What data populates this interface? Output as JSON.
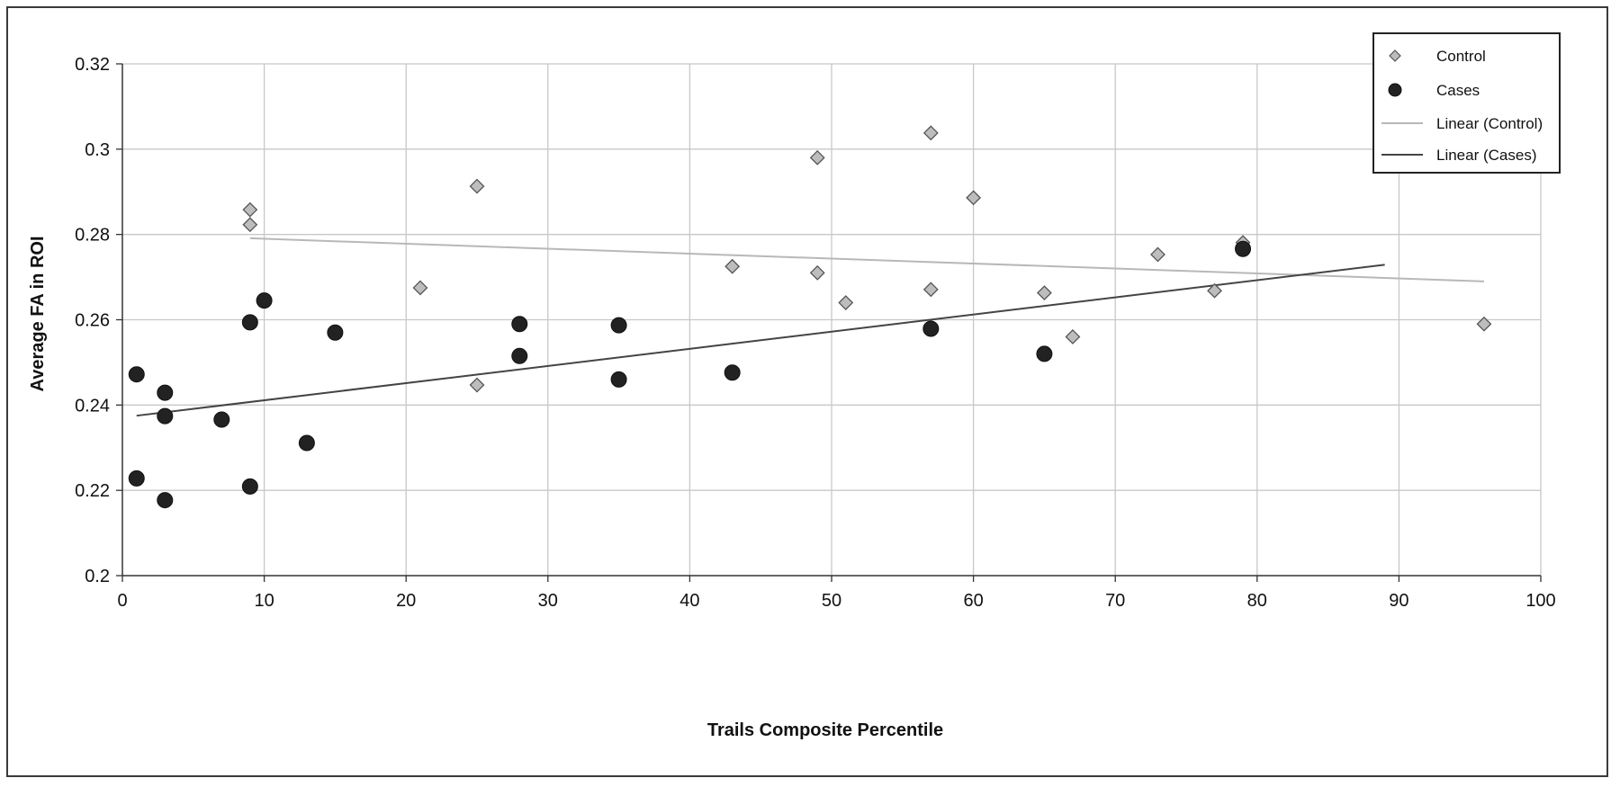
{
  "chart_data": {
    "type": "scatter",
    "title": "",
    "xlabel": "Trails Composite Percentile",
    "ylabel": "Average FA in ROI",
    "xlim": [
      0,
      100
    ],
    "ylim": [
      0.2,
      0.32
    ],
    "x_ticks": [
      0,
      10,
      20,
      30,
      40,
      50,
      60,
      70,
      80,
      90,
      100
    ],
    "y_ticks": [
      0.2,
      0.22,
      0.24,
      0.26,
      0.28,
      0.3,
      0.32
    ],
    "x_tick_labels": [
      "0",
      "10",
      "20",
      "30",
      "40",
      "50",
      "60",
      "70",
      "80",
      "90",
      "100"
    ],
    "y_tick_labels": [
      "0.2",
      "0.22",
      "0.24",
      "0.26",
      "0.28",
      "0.3",
      "0.32"
    ],
    "grid": true,
    "legend_position": "top-right",
    "series": [
      {
        "name": "Control",
        "marker": "diamond",
        "color": "#bdbdbd",
        "points": [
          [
            9,
            0.2858
          ],
          [
            9,
            0.2823
          ],
          [
            21,
            0.2675
          ],
          [
            25,
            0.2913
          ],
          [
            25,
            0.2447
          ],
          [
            43,
            0.2725
          ],
          [
            49,
            0.298
          ],
          [
            49,
            0.271
          ],
          [
            51,
            0.264
          ],
          [
            57,
            0.3038
          ],
          [
            57,
            0.2671
          ],
          [
            60,
            0.2886
          ],
          [
            65,
            0.2663
          ],
          [
            67,
            0.256
          ],
          [
            73,
            0.2753
          ],
          [
            77,
            0.2668
          ],
          [
            79,
            0.2781
          ],
          [
            96,
            0.259
          ]
        ]
      },
      {
        "name": "Cases",
        "marker": "circle",
        "color": "#222222",
        "points": [
          [
            1,
            0.2472
          ],
          [
            1,
            0.2228
          ],
          [
            3,
            0.2429
          ],
          [
            3,
            0.2374
          ],
          [
            3,
            0.2177
          ],
          [
            7,
            0.2366
          ],
          [
            9,
            0.2594
          ],
          [
            9,
            0.2209
          ],
          [
            10,
            0.2645
          ],
          [
            13,
            0.2311
          ],
          [
            15,
            0.257
          ],
          [
            28,
            0.259
          ],
          [
            28,
            0.2515
          ],
          [
            35,
            0.2587
          ],
          [
            35,
            0.246
          ],
          [
            43,
            0.2476
          ],
          [
            57,
            0.2579
          ],
          [
            65,
            0.252
          ],
          [
            79,
            0.2766
          ]
        ]
      },
      {
        "name": "Linear (Control)",
        "marker": "line",
        "color": "#b8b8b8",
        "points": [
          [
            9,
            0.2791
          ],
          [
            96,
            0.269
          ]
        ]
      },
      {
        "name": "Linear (Cases)",
        "marker": "line",
        "color": "#444444",
        "points": [
          [
            1,
            0.2375
          ],
          [
            89,
            0.2729
          ]
        ]
      }
    ]
  }
}
